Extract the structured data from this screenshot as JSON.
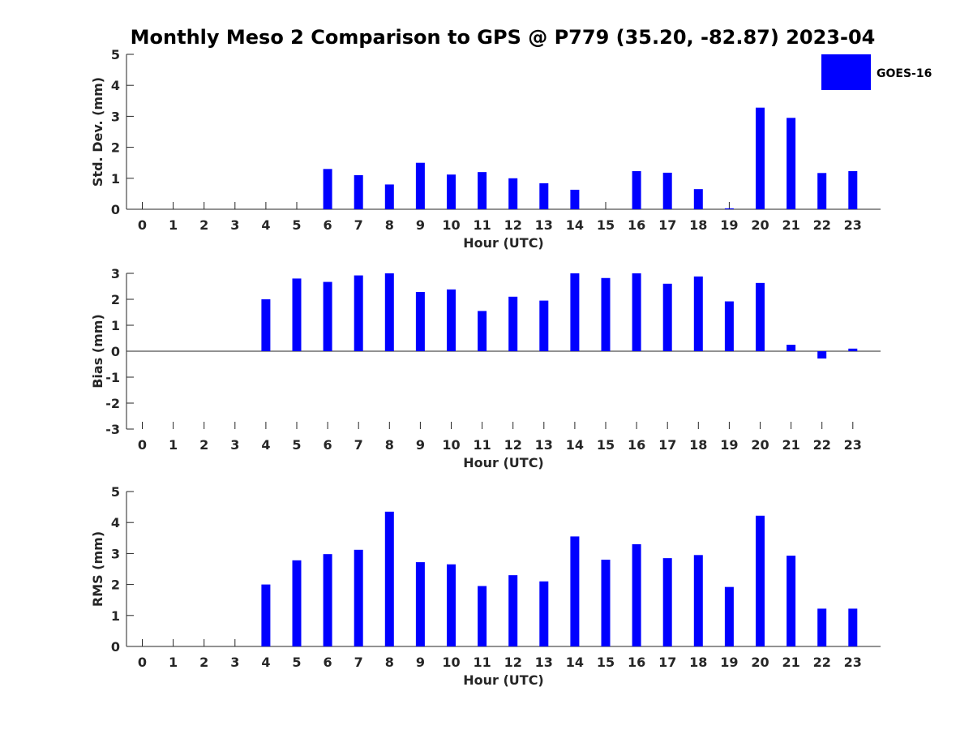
{
  "chart_data": {
    "title": "Monthly Meso 2 Comparison to GPS @ P779 (35.20, -82.87) 2023-04",
    "legend": {
      "label": "GOES-16",
      "color": "#0000ff",
      "placement": "top-right"
    },
    "bar_color": "#0000ff",
    "panels": [
      {
        "type": "bar",
        "ylabel": "Std. Dev. (mm)",
        "xlabel": "Hour (UTC)",
        "ylim": [
          0,
          5
        ],
        "yticks": [
          0,
          1,
          2,
          3,
          4,
          5
        ],
        "xticks": [
          "0",
          "1",
          "2",
          "3",
          "4",
          "5",
          "6",
          "7",
          "8",
          "9",
          "10",
          "11",
          "12",
          "13",
          "14",
          "15",
          "16",
          "17",
          "18",
          "19",
          "20",
          "21",
          "22",
          "23"
        ],
        "values": [
          0,
          0,
          0,
          0,
          0,
          0,
          1.3,
          1.1,
          0.8,
          1.5,
          1.12,
          1.2,
          1.0,
          0.84,
          0.63,
          0,
          1.23,
          1.18,
          0.65,
          0.03,
          3.28,
          2.95,
          1.17,
          1.23
        ]
      },
      {
        "type": "bar",
        "ylabel": "Bias (mm)",
        "xlabel": "Hour (UTC)",
        "ylim": [
          -3,
          3
        ],
        "yticks": [
          -3,
          -2,
          -1,
          0,
          1,
          2,
          3
        ],
        "xticks": [
          "0",
          "1",
          "2",
          "3",
          "4",
          "5",
          "6",
          "7",
          "8",
          "9",
          "10",
          "11",
          "12",
          "13",
          "14",
          "15",
          "16",
          "17",
          "18",
          "19",
          "20",
          "21",
          "22",
          "23"
        ],
        "values": [
          0,
          0,
          0,
          0,
          2.0,
          2.8,
          2.67,
          2.92,
          3.0,
          2.28,
          2.38,
          1.55,
          2.1,
          1.95,
          3.0,
          2.82,
          3.0,
          2.6,
          2.88,
          1.92,
          2.63,
          0.25,
          -0.28,
          0.1
        ]
      },
      {
        "type": "bar",
        "ylabel": "RMS (mm)",
        "xlabel": "Hour (UTC)",
        "ylim": [
          0,
          5
        ],
        "yticks": [
          0,
          1,
          2,
          3,
          4,
          5
        ],
        "xticks": [
          "0",
          "1",
          "2",
          "3",
          "4",
          "5",
          "6",
          "7",
          "8",
          "9",
          "10",
          "11",
          "12",
          "13",
          "14",
          "15",
          "16",
          "17",
          "18",
          "19",
          "20",
          "21",
          "22",
          "23"
        ],
        "values": [
          0,
          0,
          0,
          0,
          2.0,
          2.78,
          2.98,
          3.12,
          4.35,
          2.72,
          2.65,
          1.95,
          2.3,
          2.1,
          3.55,
          2.8,
          3.3,
          2.85,
          2.95,
          1.92,
          4.22,
          2.93,
          1.22,
          1.22
        ]
      }
    ]
  }
}
